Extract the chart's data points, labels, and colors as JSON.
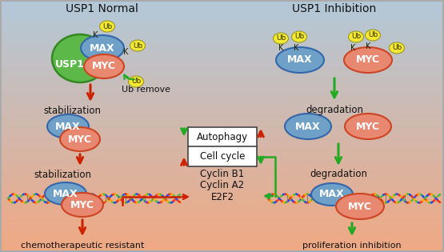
{
  "bg_top_color": "#b2c8d8",
  "bg_bottom_color": "#f0a882",
  "title_left": "USP1 Normal",
  "title_right": "USP1 Inhibition",
  "usp1_color": "#5db84a",
  "max_color": "#6ea0c8",
  "myc_color": "#e88870",
  "ub_color": "#f5e832",
  "arrow_red": "#cc2200",
  "arrow_green": "#22aa22",
  "text_color": "#222222",
  "dna_colors": [
    "#ff3300",
    "#ffaa00",
    "#44bb44",
    "#2244ff"
  ],
  "cyclin_text": "Cyclin B1\nCyclin A2\nE2F2"
}
